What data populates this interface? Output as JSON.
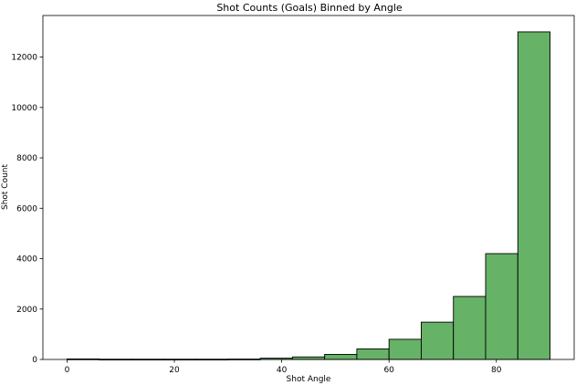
{
  "chart_data": {
    "type": "bar",
    "title": "Shot Counts (Goals) Binned by Angle",
    "xlabel": "Shot Angle",
    "ylabel": "Shot Count",
    "xlim": [
      -4.5,
      94.5
    ],
    "ylim": [
      0,
      13650
    ],
    "x_ticks": [
      0,
      20,
      40,
      60,
      80
    ],
    "y_ticks": [
      0,
      2000,
      4000,
      6000,
      8000,
      10000,
      12000
    ],
    "bar_color": "#66b266",
    "edge_color": "#000000",
    "bins": [
      {
        "x0": 0,
        "x1": 6,
        "value": 20
      },
      {
        "x0": 6,
        "x1": 12,
        "value": 10
      },
      {
        "x0": 12,
        "x1": 18,
        "value": 10
      },
      {
        "x0": 18,
        "x1": 24,
        "value": 10
      },
      {
        "x0": 24,
        "x1": 30,
        "value": 10
      },
      {
        "x0": 30,
        "x1": 36,
        "value": 15
      },
      {
        "x0": 36,
        "x1": 42,
        "value": 50
      },
      {
        "x0": 42,
        "x1": 48,
        "value": 100
      },
      {
        "x0": 48,
        "x1": 54,
        "value": 200
      },
      {
        "x0": 54,
        "x1": 60,
        "value": 420
      },
      {
        "x0": 60,
        "x1": 66,
        "value": 800
      },
      {
        "x0": 66,
        "x1": 72,
        "value": 1480
      },
      {
        "x0": 72,
        "x1": 78,
        "value": 2500
      },
      {
        "x0": 78,
        "x1": 84,
        "value": 4200
      },
      {
        "x0": 84,
        "x1": 90,
        "value": 13000
      }
    ]
  }
}
